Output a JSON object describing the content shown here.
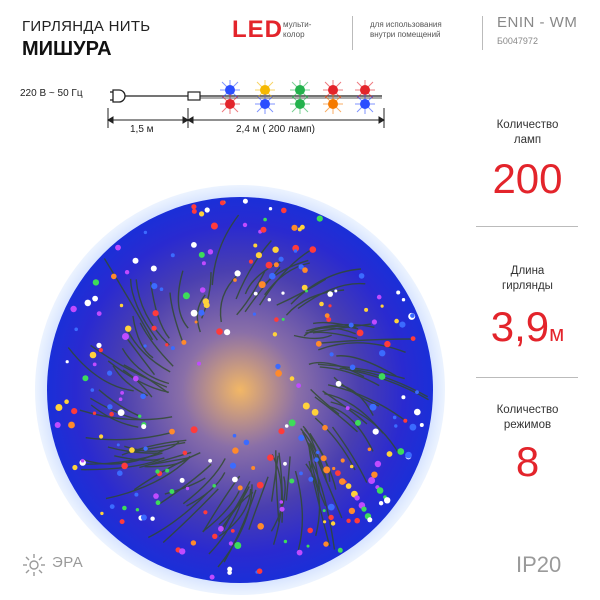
{
  "header": {
    "title_line1": "ГИРЛЯНДА НИТЬ",
    "title_line2": "МИШУРА",
    "led_label": "LED",
    "led_sub_line1": "мульти-",
    "led_sub_line2": "колор",
    "usage_line1": "для использования",
    "usage_line2": "внутри помещений",
    "model": "ENIN - WM",
    "sku": "Б0047972"
  },
  "diagram": {
    "voltage": "220 В ~ 50 Гц",
    "cable_length": "1,5 м",
    "garland_length": "2,4  м ( 200 ламп)"
  },
  "stats": [
    {
      "label_line1": "Количество",
      "label_line2": "ламп",
      "value": "200",
      "unit": ""
    },
    {
      "label_line1": "Длина",
      "label_line2": "гирлянды",
      "value": "3,9",
      "unit": "м"
    },
    {
      "label_line1": "Количество",
      "label_line2": "режимов",
      "value": "8",
      "unit": ""
    }
  ],
  "footer": {
    "brand": "ЭРА",
    "protection": "IP20"
  },
  "colors": {
    "accent": "#e3242b",
    "text": "#222222",
    "muted": "#9a9a9a"
  }
}
